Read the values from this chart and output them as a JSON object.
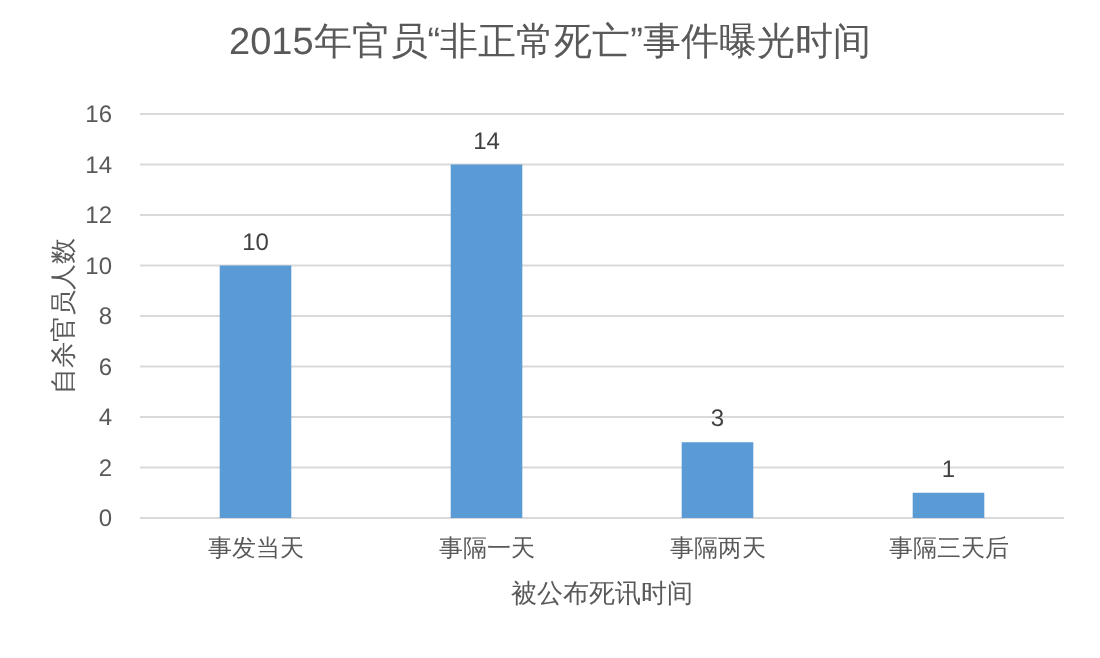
{
  "chart_data": {
    "type": "bar",
    "title": "2015年官员“非正常死亡”事件曝光时间",
    "xlabel": "被公布死讯时间",
    "ylabel": "自杀官员人数",
    "categories": [
      "事发当天",
      "事隔一天",
      "事隔两天",
      "事隔三天后"
    ],
    "values": [
      10,
      14,
      3,
      1
    ],
    "color": "#5b9bd5",
    "ylim": [
      0,
      16
    ],
    "yticks": [
      0,
      2,
      4,
      6,
      8,
      10,
      12,
      14,
      16
    ],
    "grid": "y",
    "data_labels": true
  }
}
